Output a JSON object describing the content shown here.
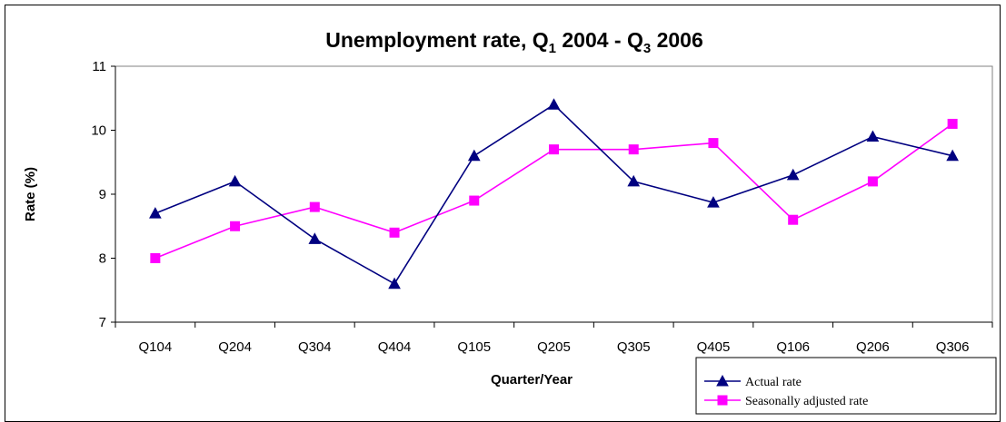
{
  "chart_data": {
    "type": "line",
    "title": {
      "part1": "Unemployment rate, Q",
      "sub1": "1",
      "part2": " 2004 - Q",
      "sub2": "3",
      "part3": " 2006"
    },
    "xlabel": "Quarter/Year",
    "ylabel": "Rate (%)",
    "ylim": [
      7,
      11
    ],
    "yticks": [
      "7",
      "8",
      "9",
      "10",
      "11"
    ],
    "categories": [
      "Q104",
      "Q204",
      "Q304",
      "Q404",
      "Q105",
      "Q205",
      "Q305",
      "Q405",
      "Q106",
      "Q206",
      "Q306"
    ],
    "grid": false,
    "legend_position": "bottom-right",
    "series": [
      {
        "name": "Actual rate",
        "color": "#000080",
        "marker": "triangle",
        "values": [
          8.7,
          9.2,
          8.3,
          7.6,
          9.6,
          10.4,
          9.2,
          8.87,
          9.3,
          9.9,
          9.6
        ]
      },
      {
        "name": "Seasonally adjusted rate",
        "color": "#ff00ff",
        "marker": "square",
        "values": [
          8.0,
          8.5,
          8.8,
          8.4,
          8.9,
          9.7,
          9.7,
          9.8,
          8.6,
          9.2,
          10.1
        ]
      }
    ]
  }
}
